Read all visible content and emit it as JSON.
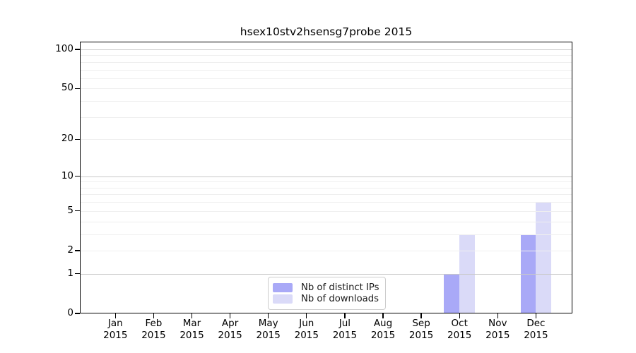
{
  "title": "hsex10stv2hsensg7probe 2015",
  "chart_data": {
    "type": "bar",
    "title": "hsex10stv2hsensg7probe 2015",
    "x_categories": [
      "Jan",
      "Feb",
      "Mar",
      "Apr",
      "May",
      "Jun",
      "Jul",
      "Aug",
      "Sep",
      "Oct",
      "Nov",
      "Dec"
    ],
    "x_sublabel": "2015",
    "series": [
      {
        "name": "Nb of distinct IPs",
        "color": "#a9a9f7",
        "values": [
          0,
          0,
          0,
          0,
          0,
          0,
          0,
          0,
          0,
          1,
          0,
          3
        ]
      },
      {
        "name": "Nb of downloads",
        "color": "#dadaf8",
        "values": [
          0,
          0,
          0,
          0,
          0,
          0,
          0,
          0,
          0,
          3,
          0,
          6
        ]
      }
    ],
    "y_scale": "log10(1+x)",
    "y_ticks": [
      0,
      1,
      2,
      5,
      10,
      20,
      50,
      100
    ],
    "y_max": 114.6,
    "gridlines_minor": [
      2,
      3,
      4,
      5,
      6,
      7,
      8,
      9,
      20,
      30,
      40,
      50,
      60,
      70,
      80,
      90
    ],
    "gridlines_major": [
      1,
      10,
      100
    ],
    "grid": true,
    "legend_position": "bottom-center"
  }
}
